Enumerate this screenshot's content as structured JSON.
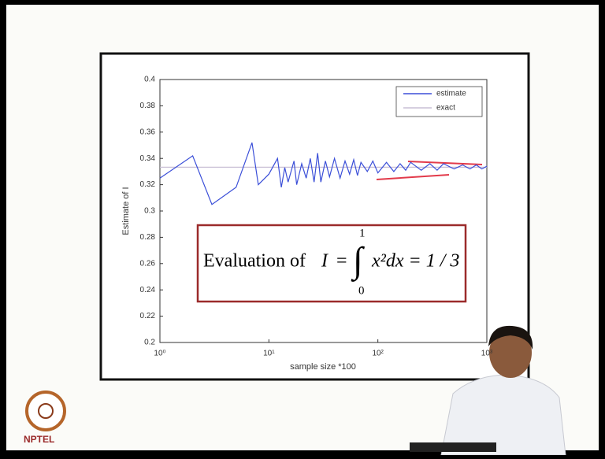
{
  "chart_data": {
    "type": "line",
    "xlabel": "sample size *100",
    "ylabel": "Estimate of I",
    "xscale": "log",
    "xlim": [
      1,
      1000
    ],
    "xticks": [
      {
        "value": 1,
        "label": "10⁰"
      },
      {
        "value": 10,
        "label": "10¹"
      },
      {
        "value": 100,
        "label": "10²"
      },
      {
        "value": 1000,
        "label": "10³"
      }
    ],
    "ylim": [
      0.2,
      0.4
    ],
    "yticks": [
      0.2,
      0.22,
      0.24,
      0.26,
      0.28,
      0.3,
      0.32,
      0.34,
      0.36,
      0.38,
      0.4
    ],
    "grid": false,
    "legend": "upper right",
    "series": [
      {
        "name": "estimate",
        "color": "#3b4fd8",
        "x": [
          1,
          2,
          3,
          5,
          7,
          8,
          10,
          12,
          13,
          14,
          15,
          17,
          18,
          20,
          22,
          24,
          26,
          28,
          30,
          33,
          36,
          40,
          45,
          50,
          55,
          60,
          65,
          70,
          80,
          90,
          100,
          120,
          140,
          160,
          180,
          200,
          250,
          300,
          350,
          400,
          500,
          600,
          700,
          800,
          900,
          1000
        ],
        "values": [
          0.325,
          0.342,
          0.305,
          0.318,
          0.352,
          0.32,
          0.328,
          0.34,
          0.318,
          0.333,
          0.322,
          0.338,
          0.32,
          0.336,
          0.325,
          0.34,
          0.322,
          0.344,
          0.322,
          0.338,
          0.326,
          0.34,
          0.325,
          0.338,
          0.328,
          0.339,
          0.327,
          0.337,
          0.33,
          0.338,
          0.329,
          0.337,
          0.33,
          0.336,
          0.331,
          0.337,
          0.331,
          0.336,
          0.331,
          0.336,
          0.332,
          0.335,
          0.332,
          0.335,
          0.332,
          0.334
        ]
      },
      {
        "name": "exact",
        "color": "#c9bfd6",
        "x": [
          1,
          1000
        ],
        "values": [
          0.3333,
          0.3333
        ]
      }
    ],
    "annotation": {
      "lead": "Evaluation of",
      "variable": "I",
      "equals": "=",
      "integral": "∫",
      "upper": "1",
      "lower": "0",
      "integrand": "x²dx = 1 / 3"
    },
    "logo": "NPTEL"
  }
}
